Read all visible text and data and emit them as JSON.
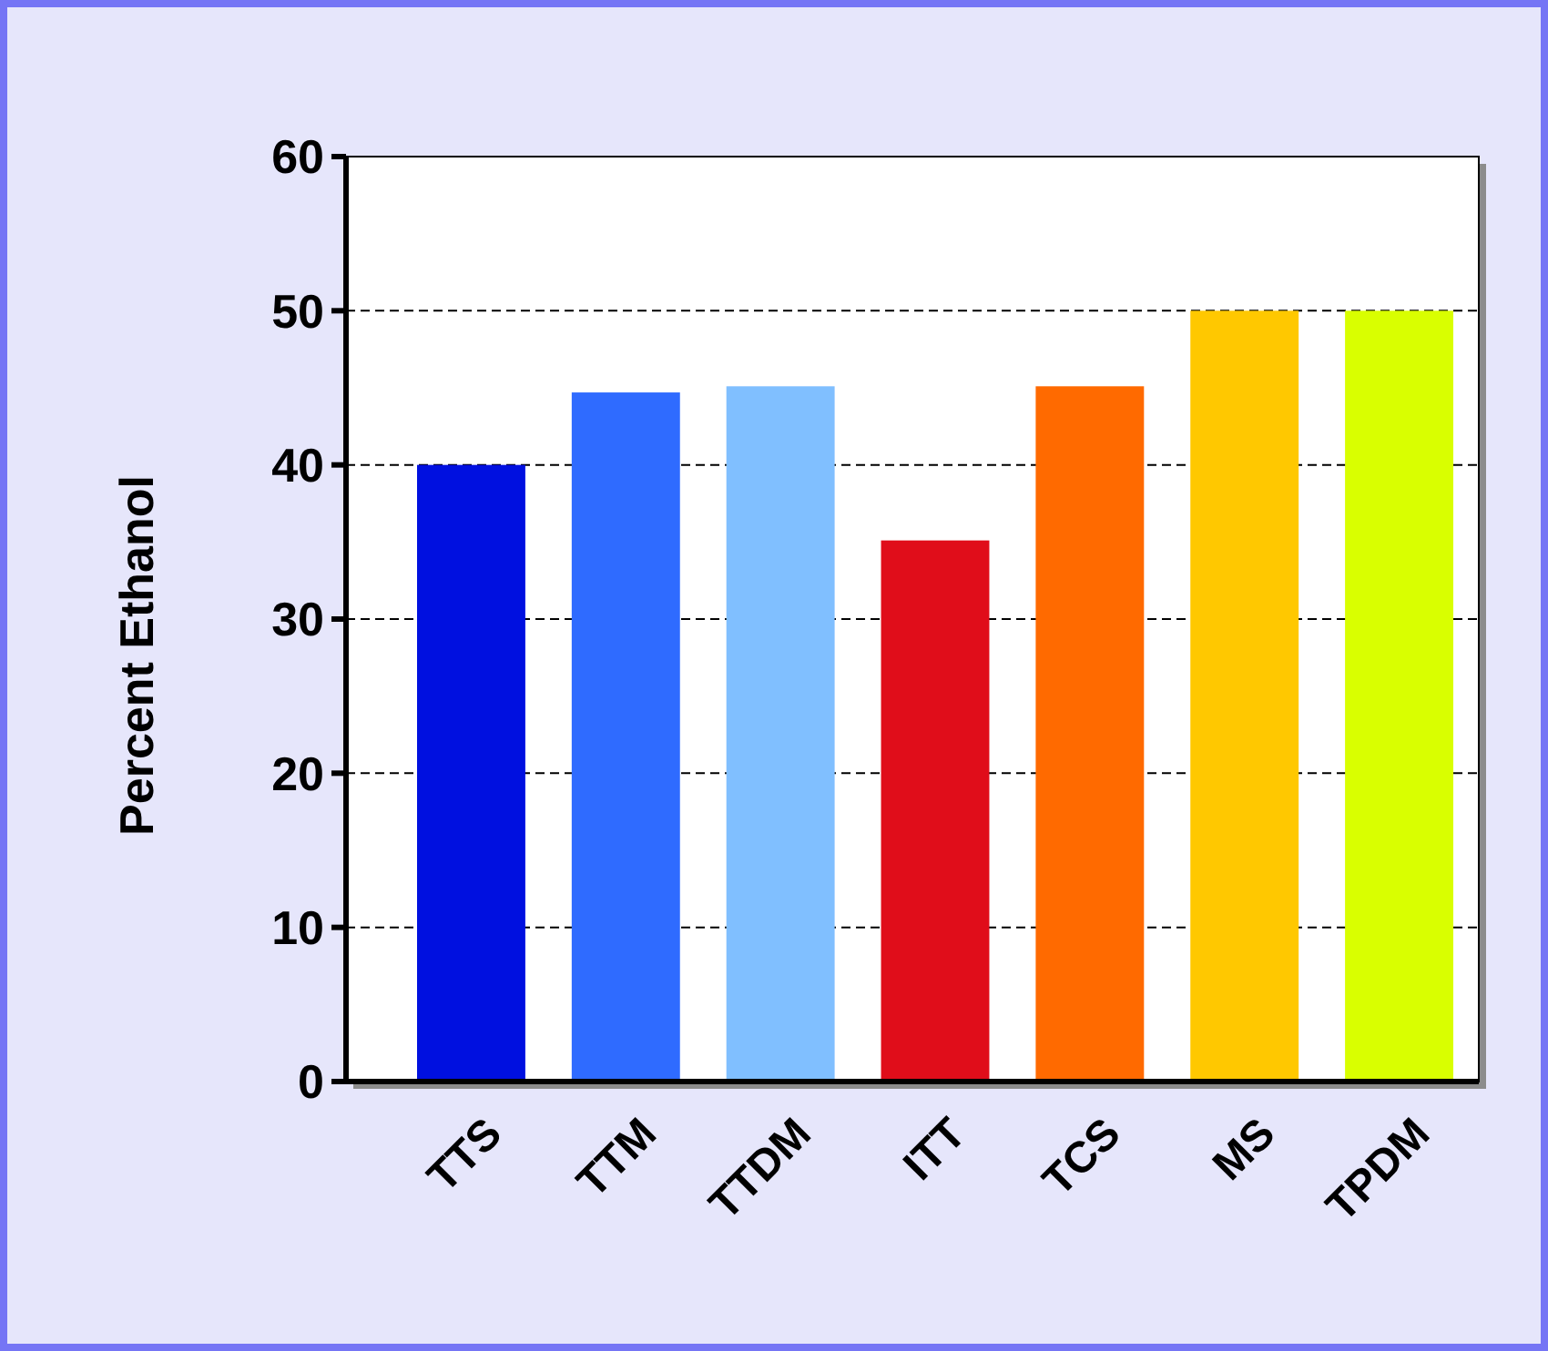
{
  "chart_data": {
    "type": "bar",
    "ylabel": "Percent Ethanol",
    "categories": [
      "TTS",
      "TTM",
      "TTDM",
      "ITT",
      "TCS",
      "MS",
      "TPDM"
    ],
    "values": [
      40,
      44.7,
      45.1,
      35.1,
      45.1,
      50,
      50
    ],
    "colors": [
      "#0010e0",
      "#2f6bff",
      "#80bfff",
      "#e00d1a",
      "#ff6a00",
      "#ffc800",
      "#d9ff00"
    ],
    "ylim": [
      0,
      60
    ],
    "yticks": [
      0,
      10,
      20,
      30,
      40,
      50,
      60
    ],
    "grid": "y"
  }
}
